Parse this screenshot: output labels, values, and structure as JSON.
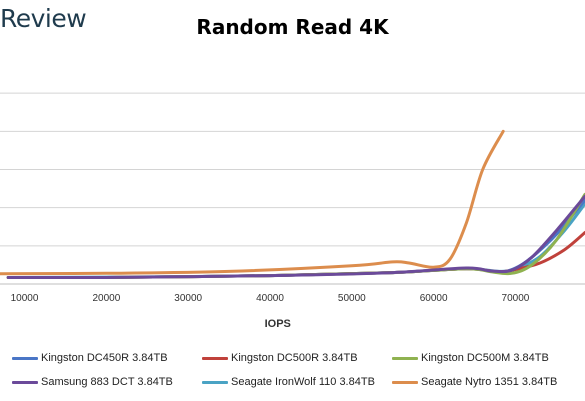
{
  "brand": "Review",
  "chart_data": {
    "type": "line",
    "title": "Random Read 4K",
    "xlabel": "IOPS",
    "ylabel": "",
    "xlim": [
      7000,
      78500
    ],
    "ylim": [
      0,
      6
    ],
    "x_ticks": [
      10000,
      20000,
      30000,
      40000,
      50000,
      60000,
      70000
    ],
    "x_tick_labels": [
      "10000",
      "20000",
      "30000",
      "40000",
      "50000",
      "60000",
      "70000"
    ],
    "y_gridlines": [
      1,
      2,
      3,
      4,
      5
    ],
    "grid": true,
    "legend_position": "bottom",
    "series": [
      {
        "name": "Kingston DC450R 3.84TB",
        "color": "#4a76c6",
        "points": [
          [
            8000,
            0.17
          ],
          [
            20000,
            0.17
          ],
          [
            40000,
            0.22
          ],
          [
            55000,
            0.3
          ],
          [
            64000,
            0.4
          ],
          [
            68000,
            0.32
          ],
          [
            70000,
            0.42
          ],
          [
            72000,
            0.7
          ],
          [
            75000,
            1.3
          ],
          [
            78500,
            2.2
          ]
        ]
      },
      {
        "name": "Kingston DC500R 3.84TB",
        "color": "#c0413b",
        "points": [
          [
            8000,
            0.17
          ],
          [
            20000,
            0.17
          ],
          [
            40000,
            0.22
          ],
          [
            55000,
            0.3
          ],
          [
            64000,
            0.4
          ],
          [
            68000,
            0.32
          ],
          [
            70000,
            0.38
          ],
          [
            73000,
            0.55
          ],
          [
            76000,
            0.9
          ],
          [
            78500,
            1.35
          ]
        ]
      },
      {
        "name": "Kingston DC500M 3.84TB",
        "color": "#8fb250",
        "points": [
          [
            8000,
            0.17
          ],
          [
            20000,
            0.17
          ],
          [
            40000,
            0.22
          ],
          [
            55000,
            0.3
          ],
          [
            64000,
            0.4
          ],
          [
            67000,
            0.32
          ],
          [
            69500,
            0.28
          ],
          [
            72000,
            0.5
          ],
          [
            75000,
            1.15
          ],
          [
            78500,
            2.35
          ]
        ]
      },
      {
        "name": "Samsung 883 DCT 3.84TB",
        "color": "#6b4a9a",
        "points": [
          [
            8000,
            0.17
          ],
          [
            20000,
            0.17
          ],
          [
            40000,
            0.22
          ],
          [
            55000,
            0.3
          ],
          [
            64000,
            0.42
          ],
          [
            67000,
            0.34
          ],
          [
            69500,
            0.36
          ],
          [
            72000,
            0.7
          ],
          [
            75000,
            1.4
          ],
          [
            78500,
            2.3
          ]
        ]
      },
      {
        "name": "Seagate IronWolf 110 3.84TB",
        "color": "#4aa3c4",
        "points": [
          [
            8000,
            0.17
          ],
          [
            20000,
            0.18
          ],
          [
            40000,
            0.22
          ],
          [
            55000,
            0.3
          ],
          [
            64000,
            0.4
          ],
          [
            68000,
            0.33
          ],
          [
            70000,
            0.4
          ],
          [
            73000,
            0.72
          ],
          [
            76000,
            1.4
          ],
          [
            78500,
            2.1
          ]
        ]
      },
      {
        "name": "Seagate Nytro 1351 3.84TB",
        "color": "#dc8d4d",
        "points": [
          [
            7000,
            0.27
          ],
          [
            20000,
            0.28
          ],
          [
            35000,
            0.33
          ],
          [
            50000,
            0.48
          ],
          [
            55000,
            0.58
          ],
          [
            57000,
            0.55
          ],
          [
            60000,
            0.44
          ],
          [
            62000,
            0.65
          ],
          [
            64000,
            1.6
          ],
          [
            66000,
            3.0
          ],
          [
            68500,
            4.0
          ]
        ]
      }
    ]
  }
}
